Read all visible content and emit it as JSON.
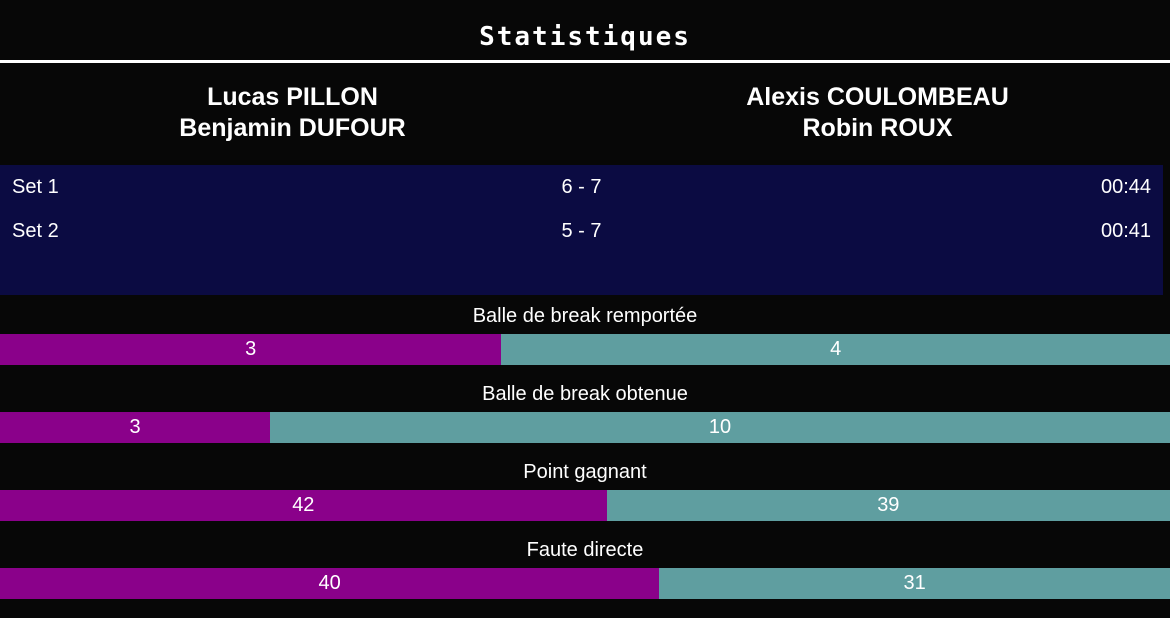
{
  "header": {
    "title": "Statistiques"
  },
  "teams": {
    "left": {
      "players": [
        "Lucas PILLON",
        "Benjamin DUFOUR"
      ]
    },
    "right": {
      "players": [
        "Alexis COULOMBEAU",
        "Robin ROUX"
      ]
    }
  },
  "sets": [
    {
      "label": "Set 1",
      "score": "6 - 7",
      "duration": "00:44"
    },
    {
      "label": "Set 2",
      "score": "5 - 7",
      "duration": "00:41"
    }
  ],
  "chart_data": {
    "type": "bar",
    "subtype": "head-to-head-proportional-stacked",
    "title": "Statistiques",
    "categories": [
      "Balle de break remportée",
      "Balle de break obtenue",
      "Point gagnant",
      "Faute directe"
    ],
    "series": [
      {
        "name": "Lucas PILLON / Benjamin DUFOUR",
        "color": "#8a018a",
        "values": [
          3,
          3,
          42,
          40
        ]
      },
      {
        "name": "Alexis COULOMBEAU / Robin ROUX",
        "color": "#5f9ea0",
        "values": [
          4,
          10,
          39,
          31
        ]
      }
    ],
    "value_labels_shown": true,
    "bar_width_rule": "each segment width is value / row total"
  },
  "colors": {
    "background": "#070707",
    "panel_background": "#0b0b42",
    "divider": "#ffffff",
    "text": "#ffffff",
    "left_bar": "#8a018a",
    "right_bar": "#5f9ea0"
  }
}
